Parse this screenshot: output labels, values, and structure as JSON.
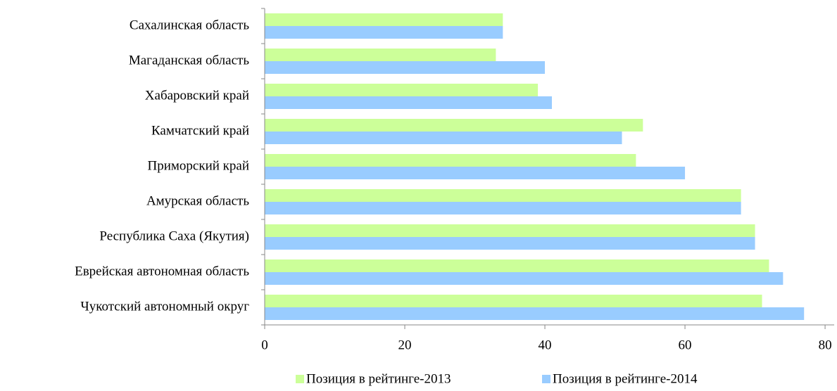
{
  "chart_data": {
    "type": "barh",
    "categories": [
      "Сахалинская область",
      "Магаданская область",
      "Хабаровский край",
      "Камчатский край",
      "Приморский край",
      "Амурская область",
      "Республика Саха (Якутия)",
      "Еврейская автономная область",
      "Чукотский автономный округ"
    ],
    "series": [
      {
        "name": "Позиция в рейтинге-2013",
        "color": "#ccff99",
        "values": [
          34,
          33,
          39,
          54,
          53,
          68,
          70,
          72,
          71
        ]
      },
      {
        "name": "Позиция в рейтинге-2014",
        "color": "#99ccff",
        "values": [
          34,
          40,
          41,
          51,
          60,
          68,
          70,
          74,
          77
        ]
      }
    ],
    "xlim": [
      0,
      81.3
    ],
    "xticks": [
      0,
      20,
      40,
      60,
      80
    ],
    "legend": "bottom"
  }
}
